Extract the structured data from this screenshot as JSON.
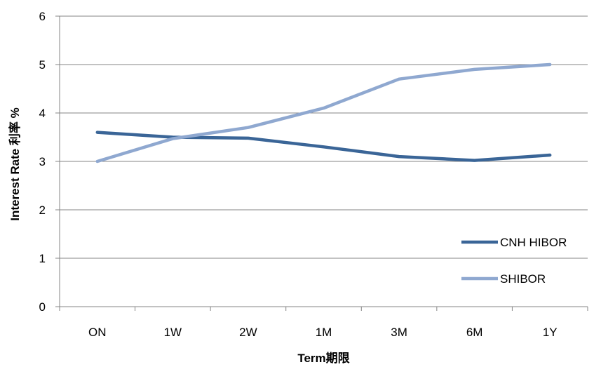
{
  "chart_data": {
    "type": "line",
    "categories": [
      "ON",
      "1W",
      "2W",
      "1M",
      "3M",
      "6M",
      "1Y"
    ],
    "series": [
      {
        "name": "CNH HIBOR",
        "color": "#3A6597",
        "values": [
          3.6,
          3.5,
          3.48,
          3.3,
          3.1,
          3.02,
          3.13
        ]
      },
      {
        "name": "SHIBOR",
        "color": "#8FA8D0",
        "values": [
          3.0,
          3.47,
          3.7,
          4.1,
          4.7,
          4.9,
          5.0
        ]
      }
    ],
    "xlabel": "Term期限",
    "ylabel": "Interest Rate 利率 %",
    "ylim": [
      0,
      6
    ],
    "yticks": [
      0,
      1,
      2,
      3,
      4,
      5,
      6
    ],
    "grid": true,
    "legend_position": "bottom-right"
  }
}
